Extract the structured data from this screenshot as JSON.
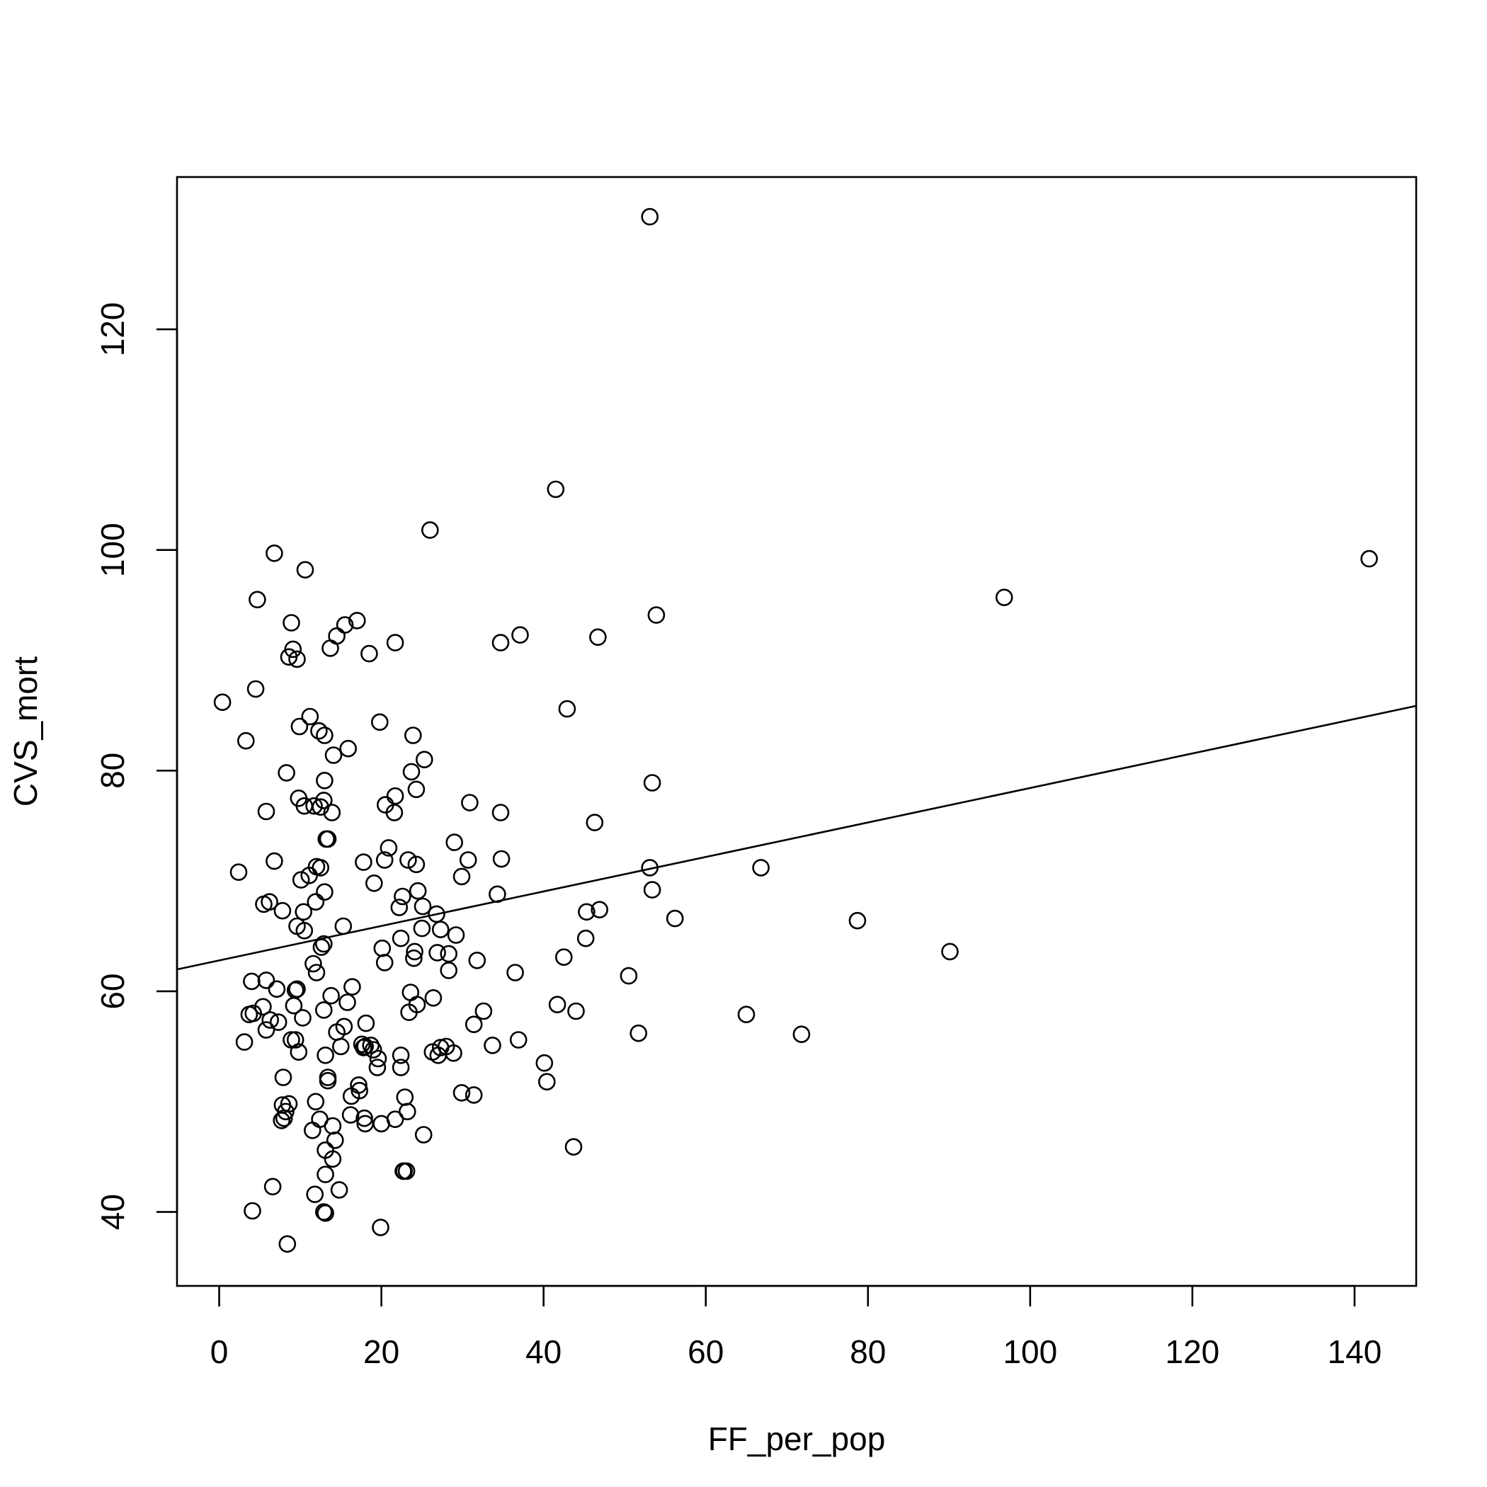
{
  "chart_data": {
    "type": "scatter",
    "title": "",
    "xlabel": "FF_per_pop",
    "ylabel": "CVS_mort",
    "xlim": [
      -5.2,
      147.6
    ],
    "ylim": [
      33.3,
      133.8
    ],
    "xticks": [
      0,
      20,
      40,
      60,
      80,
      100,
      120,
      140
    ],
    "yticks": [
      40,
      60,
      80,
      100,
      120
    ],
    "grid": false,
    "legend": "none",
    "fit_line": {
      "intercept": 62.8,
      "slope": 0.1563
    },
    "points": [
      [
        53.1,
        130.2
      ],
      [
        41.5,
        105.5
      ],
      [
        26.0,
        101.8
      ],
      [
        6.8,
        99.7
      ],
      [
        10.6,
        98.2
      ],
      [
        4.7,
        95.5
      ],
      [
        17.0,
        93.6
      ],
      [
        8.9,
        93.4
      ],
      [
        15.5,
        93.2
      ],
      [
        14.5,
        92.2
      ],
      [
        9.1,
        91.0
      ],
      [
        13.7,
        91.1
      ],
      [
        8.6,
        90.3
      ],
      [
        9.6,
        90.1
      ],
      [
        18.5,
        90.6
      ],
      [
        21.7,
        91.6
      ],
      [
        34.7,
        91.6
      ],
      [
        37.1,
        92.3
      ],
      [
        46.7,
        92.1
      ],
      [
        53.9,
        94.1
      ],
      [
        96.8,
        95.7
      ],
      [
        141.8,
        99.2
      ],
      [
        0.4,
        86.2
      ],
      [
        4.5,
        87.4
      ],
      [
        3.3,
        82.7
      ],
      [
        11.2,
        84.9
      ],
      [
        9.9,
        84.0
      ],
      [
        12.3,
        83.6
      ],
      [
        13.0,
        83.2
      ],
      [
        15.9,
        82.0
      ],
      [
        14.1,
        81.4
      ],
      [
        19.8,
        84.4
      ],
      [
        23.9,
        83.2
      ],
      [
        25.3,
        81.0
      ],
      [
        23.7,
        79.9
      ],
      [
        42.9,
        85.6
      ],
      [
        8.3,
        79.8
      ],
      [
        13.0,
        79.1
      ],
      [
        24.3,
        78.3
      ],
      [
        9.8,
        77.5
      ],
      [
        12.9,
        77.3
      ],
      [
        10.5,
        76.8
      ],
      [
        11.7,
        76.8
      ],
      [
        12.5,
        76.7
      ],
      [
        5.8,
        76.3
      ],
      [
        13.9,
        76.2
      ],
      [
        20.5,
        76.9
      ],
      [
        21.7,
        77.7
      ],
      [
        21.6,
        76.2
      ],
      [
        30.9,
        77.1
      ],
      [
        34.7,
        76.2
      ],
      [
        46.3,
        75.3
      ],
      [
        53.4,
        78.9
      ],
      [
        13.2,
        73.8
      ],
      [
        13.4,
        73.8
      ],
      [
        17.8,
        71.7
      ],
      [
        20.9,
        73.0
      ],
      [
        23.3,
        71.9
      ],
      [
        20.4,
        71.9
      ],
      [
        24.3,
        71.5
      ],
      [
        6.8,
        71.8
      ],
      [
        2.4,
        70.8
      ],
      [
        12.0,
        71.3
      ],
      [
        12.5,
        71.2
      ],
      [
        11.1,
        70.5
      ],
      [
        10.1,
        70.1
      ],
      [
        19.1,
        69.8
      ],
      [
        29.0,
        73.5
      ],
      [
        30.7,
        71.9
      ],
      [
        34.8,
        72.0
      ],
      [
        53.1,
        71.2
      ],
      [
        66.8,
        71.2
      ],
      [
        29.9,
        70.4
      ],
      [
        24.5,
        69.1
      ],
      [
        13.0,
        69.0
      ],
      [
        11.9,
        68.1
      ],
      [
        6.2,
        68.1
      ],
      [
        5.5,
        67.9
      ],
      [
        7.8,
        67.3
      ],
      [
        10.4,
        67.2
      ],
      [
        22.6,
        68.6
      ],
      [
        22.2,
        67.6
      ],
      [
        25.1,
        67.7
      ],
      [
        26.8,
        67.0
      ],
      [
        34.3,
        68.8
      ],
      [
        45.3,
        67.2
      ],
      [
        46.9,
        67.4
      ],
      [
        53.4,
        69.2
      ],
      [
        56.2,
        66.6
      ],
      [
        78.7,
        66.4
      ],
      [
        15.3,
        65.9
      ],
      [
        9.6,
        65.9
      ],
      [
        10.5,
        65.5
      ],
      [
        25.0,
        65.7
      ],
      [
        27.3,
        65.6
      ],
      [
        29.2,
        65.1
      ],
      [
        22.4,
        64.8
      ],
      [
        12.9,
        64.3
      ],
      [
        12.6,
        64.0
      ],
      [
        20.1,
        63.9
      ],
      [
        24.1,
        63.6
      ],
      [
        26.9,
        63.5
      ],
      [
        28.3,
        63.4
      ],
      [
        24.0,
        63.0
      ],
      [
        42.5,
        63.1
      ],
      [
        45.2,
        64.8
      ],
      [
        20.4,
        62.6
      ],
      [
        31.8,
        62.8
      ],
      [
        11.6,
        62.5
      ],
      [
        12.0,
        61.7
      ],
      [
        28.3,
        61.9
      ],
      [
        36.5,
        61.7
      ],
      [
        50.5,
        61.4
      ],
      [
        90.1,
        63.6
      ],
      [
        4.0,
        60.9
      ],
      [
        5.8,
        61.0
      ],
      [
        7.1,
        60.2
      ],
      [
        9.4,
        60.1
      ],
      [
        9.6,
        60.2
      ],
      [
        16.4,
        60.4
      ],
      [
        13.8,
        59.6
      ],
      [
        23.6,
        59.9
      ],
      [
        26.4,
        59.4
      ],
      [
        24.4,
        58.8
      ],
      [
        15.8,
        59.0
      ],
      [
        9.2,
        58.7
      ],
      [
        5.4,
        58.6
      ],
      [
        12.9,
        58.3
      ],
      [
        23.4,
        58.1
      ],
      [
        32.6,
        58.2
      ],
      [
        41.7,
        58.8
      ],
      [
        44.0,
        58.2
      ],
      [
        65.0,
        57.9
      ],
      [
        3.7,
        57.9
      ],
      [
        4.2,
        58.0
      ],
      [
        6.3,
        57.4
      ],
      [
        7.3,
        57.2
      ],
      [
        10.3,
        57.6
      ],
      [
        18.1,
        57.1
      ],
      [
        31.4,
        57.0
      ],
      [
        5.8,
        56.5
      ],
      [
        14.5,
        56.3
      ],
      [
        15.4,
        56.8
      ],
      [
        36.9,
        55.6
      ],
      [
        51.7,
        56.2
      ],
      [
        71.8,
        56.1
      ],
      [
        3.1,
        55.4
      ],
      [
        8.9,
        55.6
      ],
      [
        9.4,
        55.6
      ],
      [
        15.0,
        55.0
      ],
      [
        17.6,
        55.2
      ],
      [
        18.0,
        55.0
      ],
      [
        18.7,
        55.1
      ],
      [
        19.0,
        54.7
      ],
      [
        17.8,
        54.9
      ],
      [
        27.3,
        54.9
      ],
      [
        28.0,
        55.0
      ],
      [
        33.7,
        55.1
      ],
      [
        9.8,
        54.5
      ],
      [
        13.1,
        54.2
      ],
      [
        22.4,
        54.2
      ],
      [
        26.3,
        54.5
      ],
      [
        27.0,
        54.2
      ],
      [
        28.9,
        54.4
      ],
      [
        19.6,
        53.9
      ],
      [
        40.1,
        53.5
      ],
      [
        19.5,
        53.1
      ],
      [
        22.4,
        53.1
      ],
      [
        13.4,
        52.2
      ],
      [
        13.4,
        51.9
      ],
      [
        7.9,
        52.2
      ],
      [
        17.2,
        51.5
      ],
      [
        40.4,
        51.8
      ],
      [
        17.3,
        51.0
      ],
      [
        29.9,
        50.8
      ],
      [
        31.4,
        50.6
      ],
      [
        16.3,
        50.5
      ],
      [
        22.9,
        50.4
      ],
      [
        8.6,
        49.8
      ],
      [
        7.8,
        49.7
      ],
      [
        11.9,
        50.0
      ],
      [
        8.2,
        49.1
      ],
      [
        23.2,
        49.1
      ],
      [
        16.2,
        48.8
      ],
      [
        7.7,
        48.3
      ],
      [
        8.0,
        48.5
      ],
      [
        12.4,
        48.4
      ],
      [
        17.9,
        48.5
      ],
      [
        18.0,
        48.0
      ],
      [
        20.0,
        48.0
      ],
      [
        21.7,
        48.4
      ],
      [
        14.0,
        47.8
      ],
      [
        11.5,
        47.4
      ],
      [
        25.2,
        47.0
      ],
      [
        14.3,
        46.5
      ],
      [
        13.1,
        45.6
      ],
      [
        43.7,
        45.9
      ],
      [
        14.0,
        44.8
      ],
      [
        22.7,
        43.7
      ],
      [
        22.8,
        43.7
      ],
      [
        23.1,
        43.7
      ],
      [
        13.1,
        43.4
      ],
      [
        6.6,
        42.3
      ],
      [
        14.8,
        42.0
      ],
      [
        11.8,
        41.6
      ],
      [
        4.1,
        40.1
      ],
      [
        12.9,
        40.0
      ],
      [
        13.1,
        39.9
      ],
      [
        19.9,
        38.6
      ],
      [
        8.4,
        37.1
      ]
    ]
  }
}
